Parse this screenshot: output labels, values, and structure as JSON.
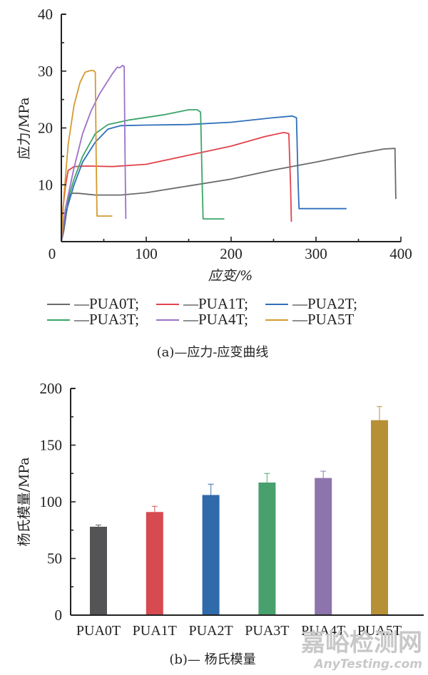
{
  "chart_data": [
    {
      "type": "line",
      "title": "",
      "caption": "(a)—应力-应变曲线",
      "xlabel": "应变/%",
      "ylabel": "应力/MPa",
      "xlim": [
        0,
        400
      ],
      "ylim": [
        0,
        40
      ],
      "xticks": [
        0,
        100,
        200,
        300,
        400
      ],
      "yticks": [
        10,
        20,
        30,
        40
      ],
      "grid": false,
      "legend_position": "bottom",
      "series": [
        {
          "name": "—PUA0T;",
          "color": "#6b6b6b",
          "x": [
            0,
            3,
            6,
            9,
            12,
            20,
            40,
            70,
            100,
            150,
            200,
            250,
            300,
            350,
            380,
            393,
            394
          ],
          "y": [
            0,
            2,
            5,
            7.8,
            8.5,
            8.5,
            8.2,
            8.2,
            8.6,
            9.8,
            11.0,
            12.6,
            14.0,
            15.5,
            16.3,
            16.4,
            7.5
          ]
        },
        {
          "name": "—PUA1T;",
          "color": "#e2434b",
          "x": [
            0,
            2,
            5,
            8,
            15,
            30,
            60,
            100,
            150,
            200,
            240,
            262,
            268,
            270,
            271
          ],
          "y": [
            0,
            6,
            10,
            12.5,
            13.2,
            13.3,
            13.2,
            13.6,
            15.2,
            16.8,
            18.5,
            19.2,
            19.0,
            10,
            3.5
          ]
        },
        {
          "name": "—PUA2T;",
          "color": "#2f6fba",
          "x": [
            0,
            5,
            15,
            25,
            40,
            55,
            70,
            100,
            150,
            200,
            250,
            272,
            277,
            279,
            280,
            300,
            336
          ],
          "y": [
            0,
            5,
            10,
            14,
            17.5,
            19.8,
            20.4,
            20.5,
            20.6,
            21.0,
            21.8,
            22.1,
            21.8,
            10,
            5.8,
            5.8,
            5.8
          ]
        },
        {
          "name": "—PUA3T;",
          "color": "#3aa569",
          "x": [
            0,
            5,
            15,
            25,
            40,
            55,
            80,
            120,
            150,
            160,
            164,
            166,
            167,
            180,
            192
          ],
          "y": [
            0,
            6,
            11,
            15,
            19,
            20.6,
            21.4,
            22.3,
            23.2,
            23.2,
            22.8,
            10,
            4.0,
            4.0,
            4.0
          ]
        },
        {
          "name": "—PUA4T;",
          "color": "#9b72c6",
          "x": [
            0,
            5,
            15,
            25,
            35,
            45,
            60,
            66,
            69,
            72,
            74,
            75,
            76
          ],
          "y": [
            0,
            6,
            13,
            19,
            23,
            26,
            29.5,
            30.7,
            30.6,
            31.0,
            30.8,
            15,
            4.0
          ]
        },
        {
          "name": "—PUA5T",
          "color": "#d49b2e",
          "x": [
            0,
            3,
            8,
            15,
            22,
            28,
            34,
            38,
            40,
            41,
            42,
            45,
            60
          ],
          "y": [
            0,
            8,
            17,
            24,
            28,
            29.8,
            30.1,
            30.1,
            29.8,
            15,
            4.5,
            4.5,
            4.5
          ]
        }
      ]
    },
    {
      "type": "bar",
      "title": "",
      "caption": "(b)— 杨氏模量",
      "xlabel": "",
      "ylabel": "杨氏模量/MPa",
      "ylim": [
        0,
        200
      ],
      "yticks": [
        0,
        50,
        100,
        150,
        200
      ],
      "grid": false,
      "categories": [
        "PUA0T",
        "PUA1T",
        "PUA2T",
        "PUA3T",
        "PUA4T",
        "PUA5T"
      ],
      "values": [
        78,
        91,
        106,
        117,
        121,
        172
      ],
      "errors": [
        1.5,
        5,
        9.5,
        8,
        6,
        12
      ],
      "colors": [
        "#545456",
        "#d64a50",
        "#2f6aaa",
        "#48a06c",
        "#8e74ad",
        "#b78f35"
      ]
    }
  ],
  "watermark": {
    "line1": "嘉峪检测网",
    "line2": "AnyTesting.com"
  }
}
